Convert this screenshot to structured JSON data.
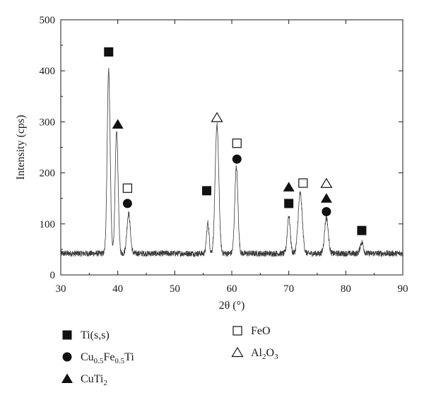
{
  "chart_data": {
    "type": "line",
    "xlabel": "2θ (°)",
    "ylabel": "Intensity (cps)",
    "xlim": [
      30,
      90
    ],
    "ylim": [
      0,
      500
    ],
    "xticks": [
      30,
      40,
      50,
      60,
      70,
      80,
      90
    ],
    "yticks": [
      0,
      100,
      200,
      300,
      400,
      500
    ],
    "grid": false,
    "colors": {
      "line": "#3a3a3a",
      "axis": "#1a1a1a",
      "marker": "#111111"
    },
    "baseline": 42,
    "noise_amplitude": 6,
    "peaks": [
      {
        "x": 38.4,
        "height": 360,
        "width": 0.26
      },
      {
        "x": 39.8,
        "height": 238,
        "width": 0.26
      },
      {
        "x": 41.9,
        "height": 78,
        "width": 0.3
      },
      {
        "x": 55.8,
        "height": 60,
        "width": 0.22
      },
      {
        "x": 57.4,
        "height": 252,
        "width": 0.32
      },
      {
        "x": 60.8,
        "height": 168,
        "width": 0.28
      },
      {
        "x": 70.0,
        "height": 74,
        "width": 0.26
      },
      {
        "x": 72.0,
        "height": 118,
        "width": 0.36
      },
      {
        "x": 76.6,
        "height": 70,
        "width": 0.32
      },
      {
        "x": 82.8,
        "height": 22,
        "width": 0.28
      }
    ],
    "markers": [
      {
        "phase": "Ti(s,s)",
        "x": 38.4,
        "y": 437
      },
      {
        "phase": "CuTi2",
        "x": 40.0,
        "y": 295
      },
      {
        "phase": "FeO",
        "x": 41.7,
        "y": 170
      },
      {
        "phase": "Cu0.5Fe0.5Ti",
        "x": 41.7,
        "y": 140
      },
      {
        "phase": "Ti(s,s)",
        "x": 55.6,
        "y": 165
      },
      {
        "phase": "Al2O3",
        "x": 57.4,
        "y": 308
      },
      {
        "phase": "FeO",
        "x": 60.9,
        "y": 258
      },
      {
        "phase": "Cu0.5Fe0.5Ti",
        "x": 60.9,
        "y": 227
      },
      {
        "phase": "CuTi2",
        "x": 70.0,
        "y": 172
      },
      {
        "phase": "Ti(s,s)",
        "x": 70.0,
        "y": 140
      },
      {
        "phase": "FeO",
        "x": 72.5,
        "y": 180
      },
      {
        "phase": "Al2O3",
        "x": 76.6,
        "y": 179
      },
      {
        "phase": "CuTi2",
        "x": 76.6,
        "y": 150
      },
      {
        "phase": "Cu0.5Fe0.5Ti",
        "x": 76.6,
        "y": 124
      },
      {
        "phase": "Ti(s,s)",
        "x": 82.8,
        "y": 87
      }
    ],
    "legend": [
      {
        "key": "Ti(s,s)",
        "symbol": "filled-square",
        "label": "Ti(s,s)"
      },
      {
        "key": "Cu0.5Fe0.5Ti",
        "symbol": "filled-circle",
        "label_parts": [
          "Cu",
          "0.5",
          "Fe",
          "0.5",
          "Ti"
        ]
      },
      {
        "key": "CuTi2",
        "symbol": "filled-triangle",
        "label_parts": [
          "CuTi",
          "2"
        ]
      },
      {
        "key": "FeO",
        "symbol": "open-square",
        "label": "FeO"
      },
      {
        "key": "Al2O3",
        "symbol": "open-triangle",
        "label_parts": [
          "Al",
          "2",
          "O",
          "3"
        ]
      }
    ]
  }
}
